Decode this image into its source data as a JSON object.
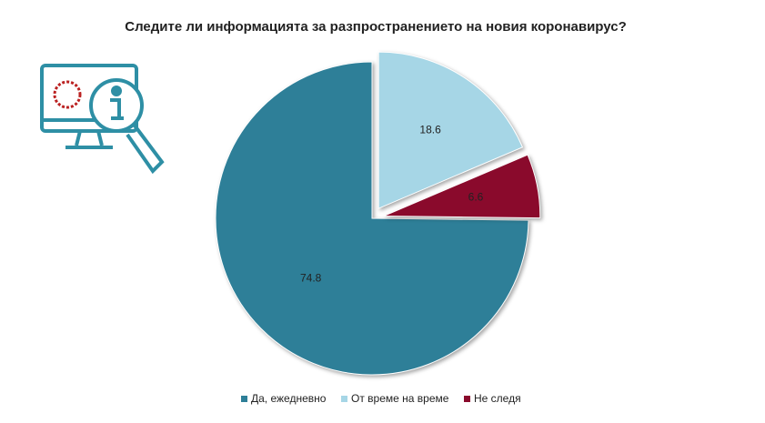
{
  "chart_data": {
    "type": "pie",
    "title": "Следите ли информацията за разпространението на новия коронавирус?",
    "categories": [
      "Да, ежедневно",
      "От време на време",
      "Не следя"
    ],
    "values": [
      74.8,
      18.6,
      6.6
    ],
    "colors": [
      "#2e7f98",
      "#a6d6e6",
      "#8a0a2c"
    ],
    "legend": "bottom"
  }
}
